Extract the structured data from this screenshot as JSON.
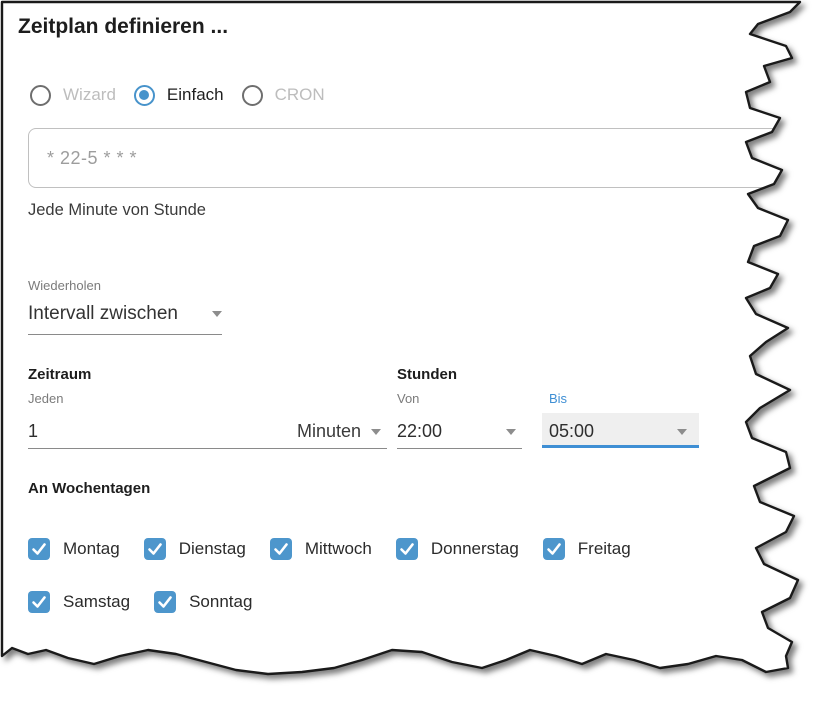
{
  "dialog": {
    "title": "Zeitplan definieren ..."
  },
  "mode": {
    "options": [
      {
        "label": "Wizard",
        "selected": false,
        "enabled": false
      },
      {
        "label": "Einfach",
        "selected": true,
        "enabled": true
      },
      {
        "label": "CRON",
        "selected": false,
        "enabled": false
      }
    ]
  },
  "cron": {
    "value": "* 22-5 * * *"
  },
  "description": "Jede Minute von Stunde",
  "repeat": {
    "label": "Wiederholen",
    "value": "Intervall zwischen"
  },
  "period": {
    "header": "Zeitraum",
    "every_label": "Jeden",
    "every_value": "1",
    "unit_value": "Minuten"
  },
  "hours": {
    "header": "Stunden",
    "from_label": "Von",
    "from_value": "22:00",
    "to_label": "Bis",
    "to_value": "05:00"
  },
  "weekdays": {
    "header": "An Wochentagen",
    "days": [
      {
        "label": "Montag",
        "checked": true
      },
      {
        "label": "Dienstag",
        "checked": true
      },
      {
        "label": "Mittwoch",
        "checked": true
      },
      {
        "label": "Donnerstag",
        "checked": true
      },
      {
        "label": "Freitag",
        "checked": true
      },
      {
        "label": "Samstag",
        "checked": true
      },
      {
        "label": "Sonntag",
        "checked": true
      }
    ]
  },
  "colors": {
    "accent_blue": "#4793cb",
    "checkbox_blue": "#4d96cc",
    "focus_blue": "#3f8fd4",
    "outline_dark": "#1a1a1a"
  }
}
